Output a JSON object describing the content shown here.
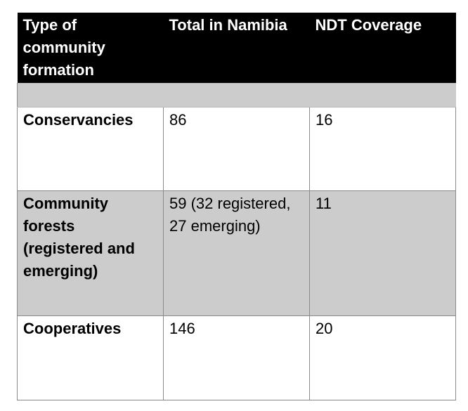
{
  "table": {
    "headers": [
      "Type of community formation",
      "Total in Namibia",
      "NDT Coverage"
    ],
    "rows": [
      {
        "type": "Conservancies",
        "total": "86",
        "coverage": "16"
      },
      {
        "type": "Community forests (registered and emerging)",
        "total": "59 (32 registered, 27 emerging)",
        "coverage": "11"
      },
      {
        "type": "Cooperatives",
        "total": "146",
        "coverage": "20"
      }
    ]
  }
}
